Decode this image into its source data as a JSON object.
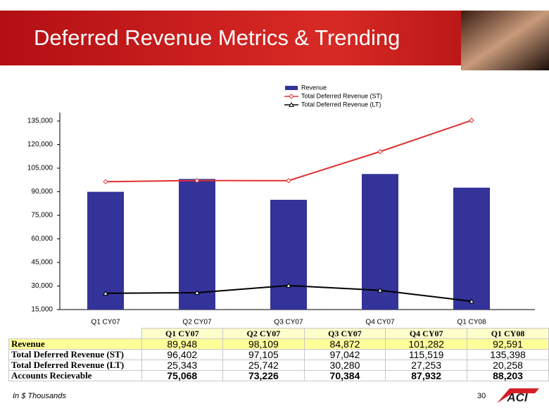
{
  "header": {
    "title": "Deferred Revenue Metrics & Trending"
  },
  "chart_data": {
    "type": "bar",
    "categories": [
      "Q1 CY07",
      "Q2 CY07",
      "Q3 CY07",
      "Q4 CY07",
      "Q1 CY08"
    ],
    "series": [
      {
        "name": "Revenue",
        "type": "bar",
        "color": "#333399",
        "values": [
          89948,
          98109,
          84872,
          101282,
          92591
        ]
      },
      {
        "name": "Total Deferred Revenue (ST)",
        "type": "line",
        "marker": "diamond",
        "color": "#e03030",
        "values": [
          96402,
          97105,
          97042,
          115519,
          135398
        ]
      },
      {
        "name": "Total Deferred Revenue (LT)",
        "type": "line",
        "marker": "triangle",
        "color": "#000000",
        "values": [
          25343,
          25742,
          30280,
          27253,
          20258
        ]
      }
    ],
    "ylim": [
      15000,
      135000
    ],
    "yticks": [
      {
        "value": 15000,
        "label": "15,000"
      },
      {
        "value": 30000,
        "label": "30,000"
      },
      {
        "value": 45000,
        "label": "45,000"
      },
      {
        "value": 60000,
        "label": "60,000"
      },
      {
        "value": 75000,
        "label": "75,000"
      },
      {
        "value": 90000,
        "label": "90,000"
      },
      {
        "value": 105000,
        "label": "105,000"
      },
      {
        "value": 120000,
        "label": "120,000"
      },
      {
        "value": 135000,
        "label": "135,000"
      }
    ],
    "grid": false,
    "legend": "top"
  },
  "table": {
    "columns": [
      "Q1 CY07",
      "Q2 CY07",
      "Q3 CY07",
      "Q4 CY07",
      "Q1 CY08"
    ],
    "rows": [
      [
        "Revenue",
        "89,948",
        "98,109",
        "84,872",
        "101,282",
        "92,591"
      ],
      [
        "Total Deferred Revenue (ST)",
        "96,402",
        "97,105",
        "97,042",
        "115,519",
        "135,398"
      ],
      [
        "Total Deferred Revenue (LT)",
        "25,343",
        "25,742",
        "30,280",
        "27,253",
        "20,258"
      ],
      [
        "Accounts Recievable",
        "75,068",
        "73,226",
        "70,384",
        "87,932",
        "88,203"
      ]
    ]
  },
  "footer": {
    "note": "In $ Thousands",
    "page_number": "30",
    "logo": "ACI"
  }
}
